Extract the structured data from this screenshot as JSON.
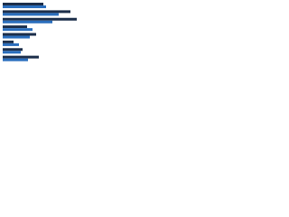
{
  "chart_data": {
    "type": "barh",
    "categories": [
      null,
      null,
      null,
      null,
      null,
      null,
      null,
      null
    ],
    "series": [
      {
        "color": "#1c2e4a",
        "values": [
          45,
          75,
          82,
          27,
          37,
          12,
          22,
          40
        ]
      },
      {
        "color": "#2a6ebd",
        "values": [
          48,
          62,
          55,
          33,
          30,
          18,
          20,
          28
        ]
      }
    ]
  }
}
